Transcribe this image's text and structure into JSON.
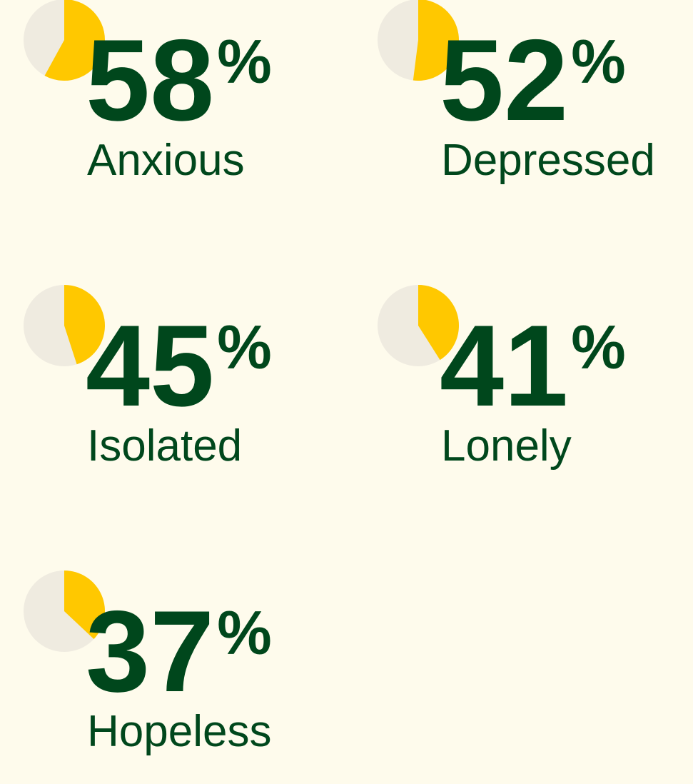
{
  "chart_data": {
    "type": "pie",
    "categories": [
      "Anxious",
      "Depressed",
      "Isolated",
      "Lonely",
      "Hopeless"
    ],
    "values": [
      58,
      52,
      45,
      41,
      37
    ],
    "unit": "%",
    "color": "#ffc800",
    "rest_color": "#efebe0"
  }
}
